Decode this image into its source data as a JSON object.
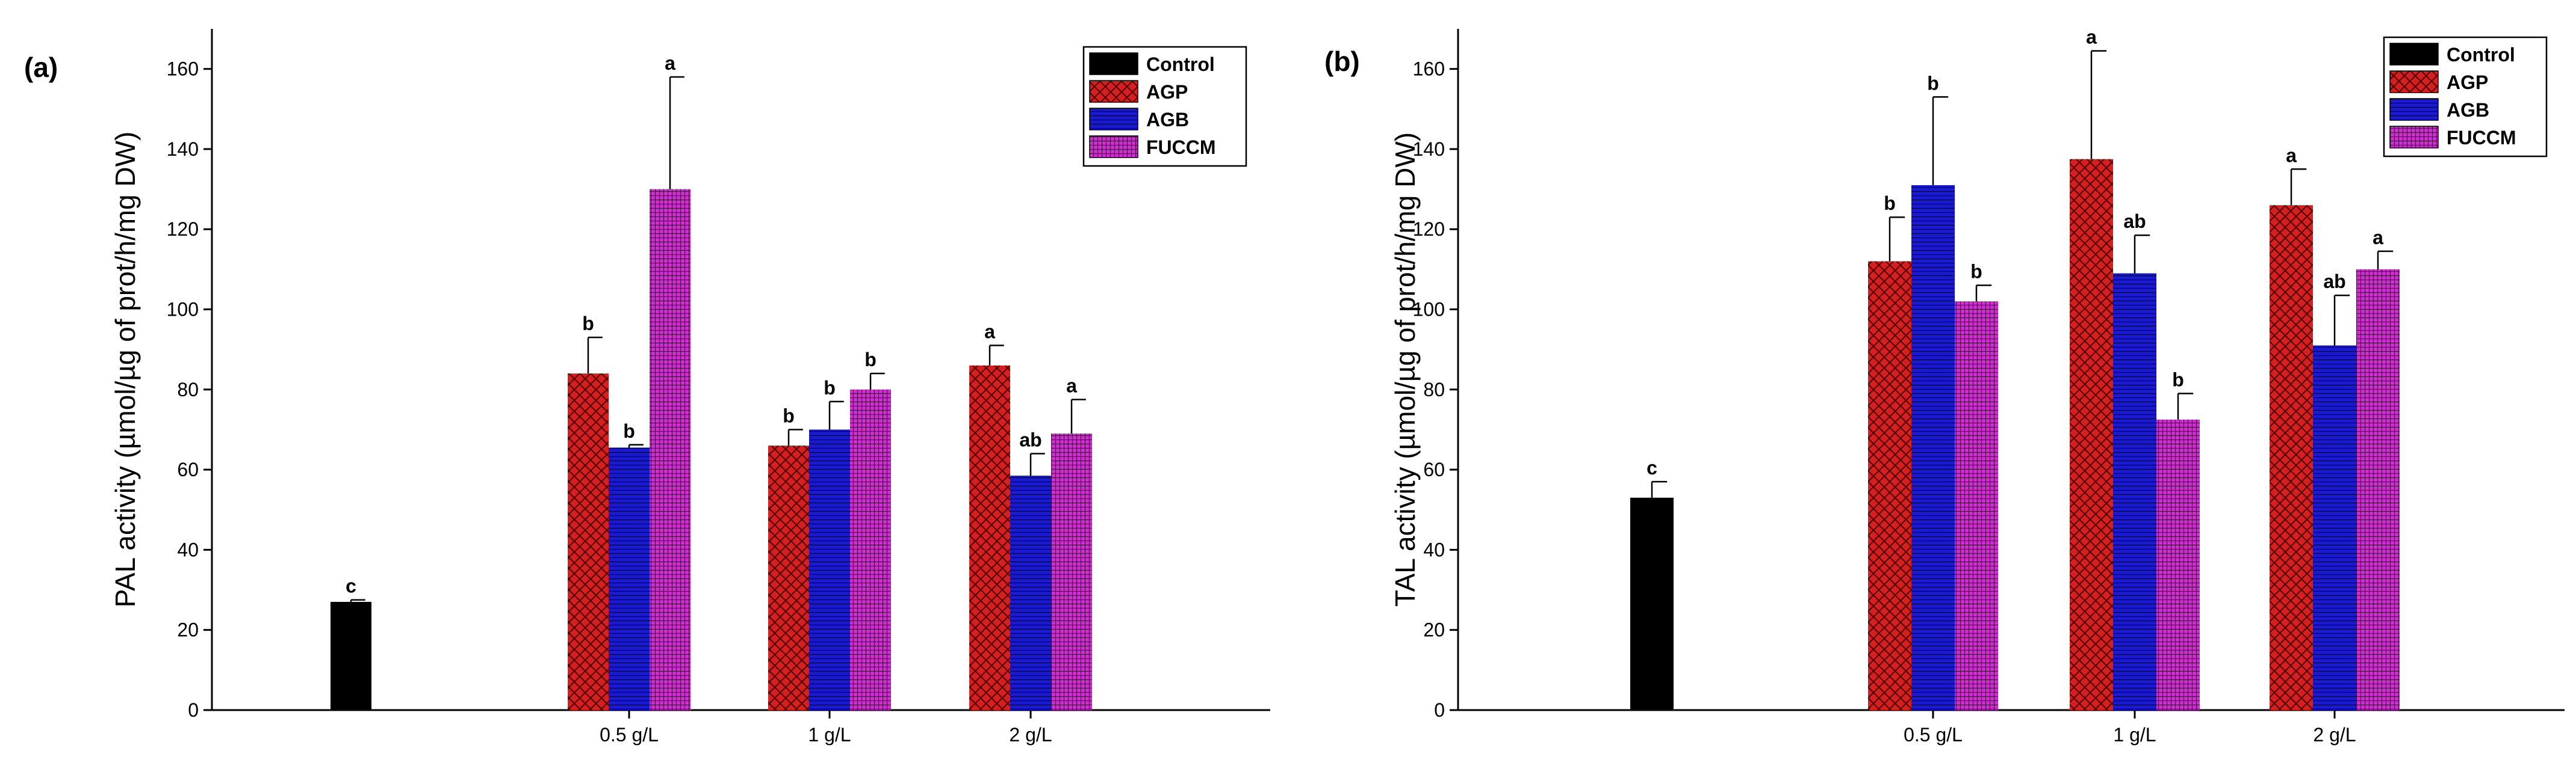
{
  "colors": {
    "Control": "#000000",
    "AGP": "#d42020",
    "AGB": "#1a1ad0",
    "FUCCM": "#cc33cc"
  },
  "chart_data": [
    {
      "type": "bar",
      "panel_label": "(a)",
      "ylabel": "PAL activity (µmol/µg of prot/h/mg DW)",
      "ylim": [
        0,
        170
      ],
      "yticks": [
        0,
        20,
        40,
        60,
        80,
        100,
        120,
        140,
        160
      ],
      "legend": [
        "Control",
        "AGP",
        "AGB",
        "FUCCM"
      ],
      "legend_position": "top-right",
      "groups": [
        {
          "label": "",
          "bars": [
            {
              "series": "Control",
              "value": 27,
              "error": 0.5,
              "sig": "c"
            }
          ]
        },
        {
          "label": "0.5 g/L",
          "bars": [
            {
              "series": "AGP",
              "value": 84,
              "error": 9,
              "sig": "b"
            },
            {
              "series": "AGB",
              "value": 65.5,
              "error": 0.7,
              "sig": "b"
            },
            {
              "series": "FUCCM",
              "value": 130,
              "error": 28,
              "sig": "a"
            }
          ]
        },
        {
          "label": "1 g/L",
          "bars": [
            {
              "series": "AGP",
              "value": 66,
              "error": 4,
              "sig": "b"
            },
            {
              "series": "AGB",
              "value": 70,
              "error": 7,
              "sig": "b"
            },
            {
              "series": "FUCCM",
              "value": 80,
              "error": 4,
              "sig": "b"
            }
          ]
        },
        {
          "label": "2 g/L",
          "bars": [
            {
              "series": "AGP",
              "value": 86,
              "error": 5,
              "sig": "a"
            },
            {
              "series": "AGB",
              "value": 58.5,
              "error": 5.5,
              "sig": "ab"
            },
            {
              "series": "FUCCM",
              "value": 69,
              "error": 8.5,
              "sig": "a"
            }
          ]
        }
      ]
    },
    {
      "type": "bar",
      "panel_label": "(b)",
      "ylabel": "TAL activity (µmol/µg of prot/h/mg DW)",
      "ylim": [
        0,
        170
      ],
      "yticks": [
        0,
        20,
        40,
        60,
        80,
        100,
        120,
        140,
        160
      ],
      "legend": [
        "Control",
        "AGP",
        "AGB",
        "FUCCM"
      ],
      "legend_position": "top-right",
      "groups": [
        {
          "label": "",
          "bars": [
            {
              "series": "Control",
              "value": 53,
              "error": 4,
              "sig": "c"
            }
          ]
        },
        {
          "label": "0.5 g/L",
          "bars": [
            {
              "series": "AGP",
              "value": 112,
              "error": 11,
              "sig": "b"
            },
            {
              "series": "AGB",
              "value": 131,
              "error": 22,
              "sig": "b"
            },
            {
              "series": "FUCCM",
              "value": 102,
              "error": 4,
              "sig": "b"
            }
          ]
        },
        {
          "label": "1 g/L",
          "bars": [
            {
              "series": "AGP",
              "value": 137.5,
              "error": 27,
              "sig": "a"
            },
            {
              "series": "AGB",
              "value": 109,
              "error": 9.5,
              "sig": "ab"
            },
            {
              "series": "FUCCM",
              "value": 72.5,
              "error": 6.5,
              "sig": "b"
            }
          ]
        },
        {
          "label": "2 g/L",
          "bars": [
            {
              "series": "AGP",
              "value": 126,
              "error": 9,
              "sig": "a"
            },
            {
              "series": "AGB",
              "value": 91,
              "error": 12.5,
              "sig": "ab"
            },
            {
              "series": "FUCCM",
              "value": 110,
              "error": 4.5,
              "sig": "a"
            }
          ]
        }
      ]
    }
  ]
}
